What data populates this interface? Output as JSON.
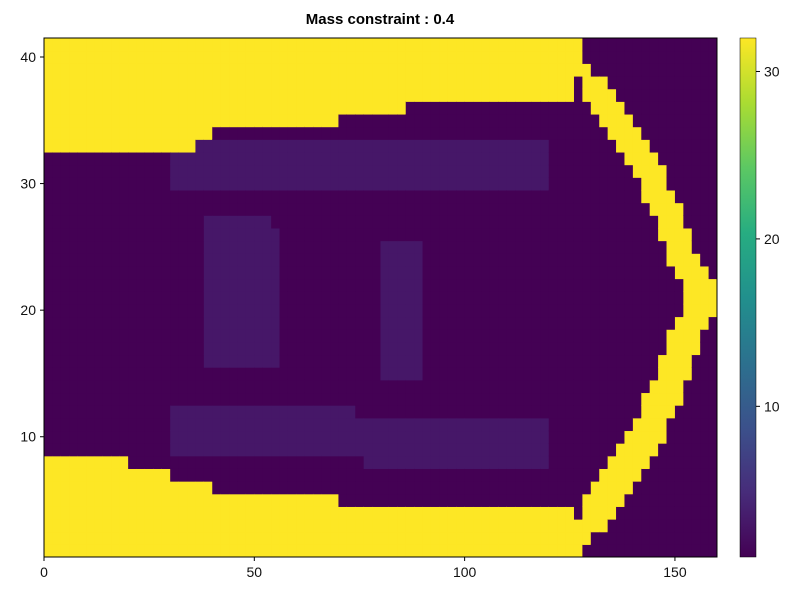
{
  "chart_data": {
    "type": "heatmap",
    "title": "Mass constraint : 0.4",
    "xlabel": "",
    "ylabel": "",
    "xlim": [
      0,
      160
    ],
    "ylim": [
      0.5,
      41.5
    ],
    "x_ticks": [
      0,
      50,
      100,
      150
    ],
    "y_ticks": [
      10,
      20,
      30,
      40
    ],
    "grid": true,
    "colorbar": {
      "colormap": "viridis",
      "range": [
        1,
        32
      ],
      "ticks": [
        10,
        20,
        30
      ],
      "stops": [
        "#440154",
        "#472c7a",
        "#3b518b",
        "#2c718e",
        "#21908d",
        "#27ad81",
        "#5cc863",
        "#aadc32",
        "#fde725"
      ]
    },
    "values_legend": {
      "low_material": 1,
      "faint_material": 3,
      "solid_material": 32
    },
    "regions": {
      "top_band": [
        [
          0,
          33
        ],
        [
          20,
          33
        ],
        [
          30,
          32
        ],
        [
          40,
          34
        ],
        [
          70,
          35
        ],
        [
          100,
          37
        ],
        [
          125,
          37
        ],
        [
          160,
          37
        ]
      ],
      "bottom_band": [
        [
          0,
          8
        ],
        [
          20,
          8
        ],
        [
          30,
          7
        ],
        [
          40,
          6
        ],
        [
          70,
          5
        ],
        [
          100,
          4.5
        ],
        [
          125,
          4.5
        ],
        [
          160,
          4.5
        ]
      ],
      "right_arc_outer": [
        [
          125,
          40.5
        ],
        [
          135,
          36
        ],
        [
          145,
          31
        ],
        [
          152,
          25
        ],
        [
          158,
          21
        ],
        [
          152,
          16
        ],
        [
          145,
          10
        ],
        [
          135,
          5
        ],
        [
          125,
          0.5
        ]
      ],
      "right_arc_inner": [
        [
          127,
          40.5
        ],
        [
          131,
          37
        ],
        [
          141,
          32
        ],
        [
          149,
          26
        ],
        [
          155,
          21
        ],
        [
          149,
          16
        ],
        [
          141,
          10
        ],
        [
          131,
          5
        ],
        [
          127,
          0.5
        ]
      ],
      "faint_struts": [
        [
          [
            30,
            31.5
          ],
          [
            120,
            31
          ]
        ],
        [
          [
            30,
            10.5
          ],
          [
            120,
            9.5
          ]
        ],
        [
          [
            38,
            22
          ],
          [
            55,
            21
          ]
        ],
        [
          [
            80,
            20
          ],
          [
            90,
            20
          ]
        ]
      ]
    }
  }
}
